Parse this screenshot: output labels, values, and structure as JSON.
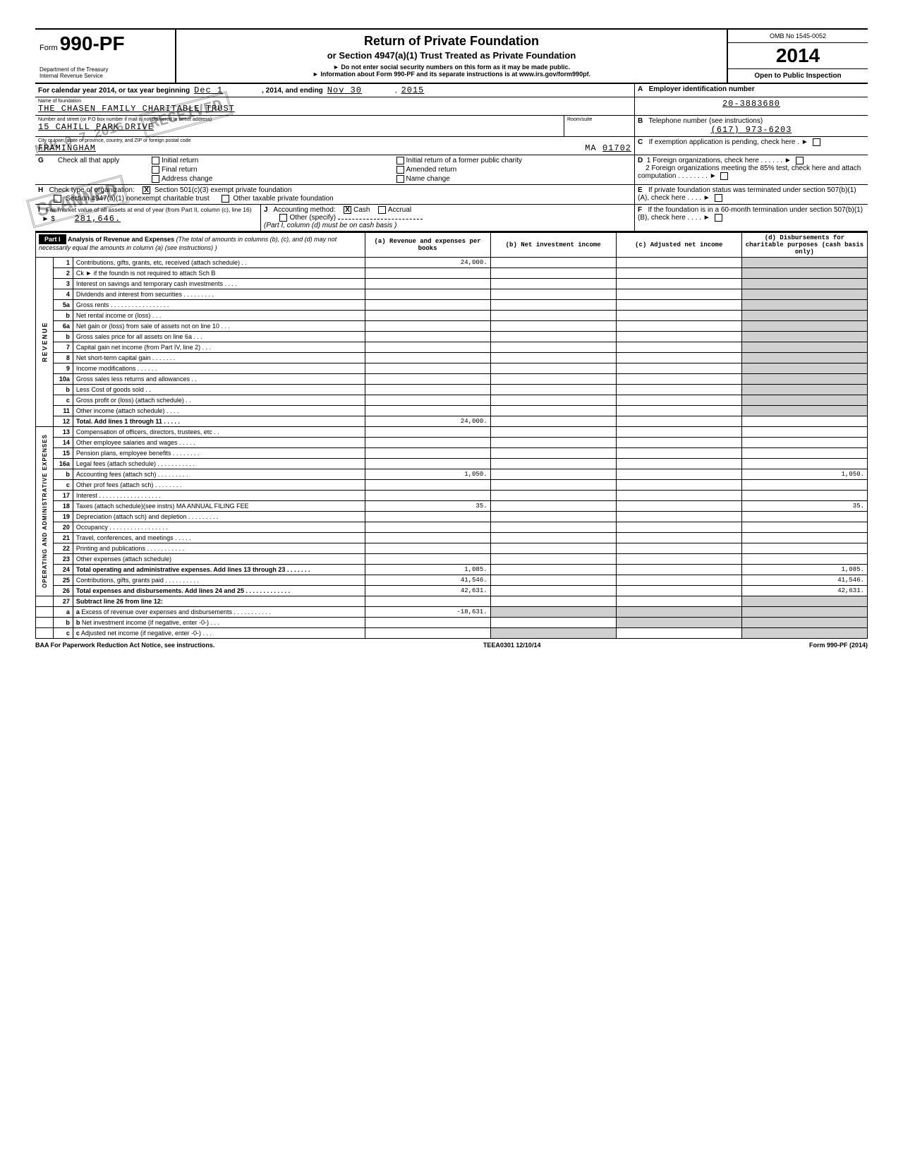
{
  "form": {
    "number_prefix": "Form",
    "number": "990-PF",
    "dept": "Department of the Treasury\nInternal Revenue Service",
    "title": "Return of Private Foundation",
    "subtitle": "or Section 4947(a)(1) Trust Treated as Private Foundation",
    "note1": "► Do not enter social security numbers on this form as it may be made public.",
    "note2": "► Information about Form 990-PF and its separate instructions is at www.irs.gov/form990pf.",
    "omb": "OMB No 1545-0052",
    "year": "2014",
    "open": "Open to Public Inspection"
  },
  "period": {
    "label": "For calendar year 2014, or tax year beginning",
    "begin": "Dec 1",
    "mid": ", 2014, and ending",
    "end_month": "Nov 30",
    "end_year": "2015"
  },
  "foundation": {
    "name_label": "Name of foundation",
    "name": "THE CHASEN FAMILY CHARITABLE TRUST",
    "addr_label": "Number and street (or P.O box number if mail is not delivered to street address)",
    "addr": "15 CAHILL PARK DRIVE",
    "room_label": "Room/suite",
    "city_label": "City or town, state or province, country, and ZIP or foreign postal code",
    "city": "FRAMINGHAM",
    "state": "MA",
    "zip": "01702",
    "ein_label_letter": "A",
    "ein_label": "Employer identification number",
    "ein": "20-3883680",
    "phone_label_letter": "B",
    "phone_label": "Telephone number (see instructions)",
    "phone": "(617) 973-6203"
  },
  "checks": {
    "G": "Check all that apply",
    "G_opts": [
      "Initial return",
      "Final return",
      "Address change",
      "Initial return of a former public charity",
      "Amended return",
      "Name change"
    ],
    "H": "Check type of organization:",
    "H_opt1": "Section 501(c)(3) exempt private foundation",
    "H_opt2": "Section 4947(a)(1) nonexempt charitable trust",
    "H_opt3": "Other taxable private foundation",
    "I_label": "Fair market value of all assets at end of year (from Part II, column (c), line 16)",
    "I_value": "281,646.",
    "J_label": "Accounting method:",
    "J_opts": [
      "Cash",
      "Accrual",
      "Other (specify)"
    ],
    "J_note": "(Part I, column (d) must be on cash basis )",
    "C": "If exemption application is pending, check here . ►",
    "D1": "1 Foreign organizations, check here . . . . . . ►",
    "D2": "2 Foreign organizations meeting the 85% test, check here and attach computation . . . . . . . . ►",
    "E": "If private foundation status was terminated under section 507(b)(1)(A), check here . . . . ►",
    "F": "If the foundation is in a 60-month termination under section 507(b)(1)(B), check here . . . . ►"
  },
  "part1": {
    "title": "Analysis of Revenue and Expenses",
    "note": "(The total of amounts in columns (b), (c), and (d) may not necessarily equal the amounts in column (a) (see instructions) )",
    "cols": {
      "a": "(a) Revenue and expenses per books",
      "b": "(b) Net investment income",
      "c": "(c) Adjusted net income",
      "d": "(d) Disbursements for charitable purposes (cash basis only)"
    }
  },
  "side_revenue": "REVENUE",
  "side_opadmin": "OPERATING AND ADMINISTRATIVE EXPENSES",
  "revenue_rows": [
    {
      "n": "1",
      "d": "Contributions, gifts, grants, etc, received (attach schedule)  .  .",
      "a": "24,000."
    },
    {
      "n": "2",
      "d": "Ck ►        if the foundn is not required to attach Sch B"
    },
    {
      "n": "3",
      "d": "Interest on savings and temporary cash investments  .  .  .  ."
    },
    {
      "n": "4",
      "d": "Dividends and interest from securities .  .  .  .  .  .  .  .  ."
    },
    {
      "n": "5a",
      "d": "Gross rents .  .  .  .  .  .  .  .  .  .  .  .  .  .  .  .  ."
    },
    {
      "n": "b",
      "d": "Net rental income or (loss)  .  .  ."
    },
    {
      "n": "6a",
      "d": "Net gain or (loss) from sale of assets not on line 10  .  .  ."
    },
    {
      "n": "b",
      "d": "Gross sales price for all assets on line 6a  .  .  ."
    },
    {
      "n": "7",
      "d": "Capital gain net income (from Part IV, line 2)  .  .  ."
    },
    {
      "n": "8",
      "d": "Net short-term capital gain  .  .  .  .  .  .  ."
    },
    {
      "n": "9",
      "d": "Income modifications  .  .  .  .  .  ."
    },
    {
      "n": "10a",
      "d": "Gross sales less returns and allowances  .  ."
    },
    {
      "n": "b",
      "d": "Less Cost of goods sold  .  ."
    },
    {
      "n": "c",
      "d": "Gross profit or (loss) (attach schedule) .  ."
    },
    {
      "n": "11",
      "d": "Other income (attach schedule) .  .  .  ."
    },
    {
      "n": "12",
      "d": "Total.  Add lines 1 through 11 .  .  .  .  .",
      "a": "24,000.",
      "bold": true
    }
  ],
  "expense_rows": [
    {
      "n": "13",
      "d": "Compensation of officers, directors, trustees, etc .  ."
    },
    {
      "n": "14",
      "d": "Other employee salaries and wages  .  .  .  .  ."
    },
    {
      "n": "15",
      "d": "Pension plans, employee benefits .  .  .  .  .  .  .  ."
    },
    {
      "n": "16a",
      "d": "Legal fees (attach schedule) .  .  .  .  .  .  .  .  .  .  ."
    },
    {
      "n": "b",
      "d": "Accounting fees (attach sch) .  .  .  .  .  .  .  .  .",
      "a": "1,050.",
      "dd": "1,050."
    },
    {
      "n": "c",
      "d": "Other prof fees (attach sch) .  .  .  .  .  .  .  ."
    },
    {
      "n": "17",
      "d": "Interest  .  .  .  .  .  .  .  .  .  .  .  .  .  .  .  .  .  ."
    },
    {
      "n": "18",
      "d": "Taxes (attach schedule)(see instrs)  MA ANNUAL FILING FEE",
      "a": "35.",
      "dd": "35."
    },
    {
      "n": "19",
      "d": "Depreciation (attach sch) and depletion  .  .  .  .  .  .  .  .  ."
    },
    {
      "n": "20",
      "d": "Occupancy .  .  .  .  .  .  .  .  .  .  .  .  .  .  .  .  ."
    },
    {
      "n": "21",
      "d": "Travel, conferences, and meetings  .  .  .  .  ."
    },
    {
      "n": "22",
      "d": "Printing and publications .  .  .  .  .  .  .  .  .  .  ."
    },
    {
      "n": "23",
      "d": "Other expenses (attach schedule)"
    },
    {
      "n": "24",
      "d": "Total operating and administrative expenses. Add lines 13 through 23  .  .  .  .  .  .  .",
      "a": "1,085.",
      "dd": "1,085.",
      "bold": true
    },
    {
      "n": "25",
      "d": "Contributions, gifts, grants paid .  .  .  .  .  .  .  .  .  .",
      "a": "41,546.",
      "dd": "41,546."
    },
    {
      "n": "26",
      "d": "Total expenses and disbursements. Add lines 24 and 25 .  .  .  .  .  .  .  .  .  .  .  .  .",
      "a": "42,631.",
      "dd": "42,631.",
      "bold": true
    }
  ],
  "net_rows": [
    {
      "n": "27",
      "d": "Subtract line 26 from line 12:"
    },
    {
      "n": "a",
      "d": "Excess of revenue over expenses and disbursements   .  .  .  .  .  .  .  .  .  .  .",
      "a": "-18,631."
    },
    {
      "n": "b",
      "d": "Net investment income (if negative, enter -0-) .  .  ."
    },
    {
      "n": "c",
      "d": "Adjusted net income (if negative, enter -0-)  .  .  ."
    }
  ],
  "footer": {
    "left": "BAA  For Paperwork Reduction Act Notice, see instructions.",
    "mid": "TEEA0301   12/10/14",
    "right": "Form 990-PF (2014)"
  },
  "stamps": {
    "received": "RECEIVED",
    "scanned": "SCANNED",
    "date": "MAR 0 7 2016"
  }
}
